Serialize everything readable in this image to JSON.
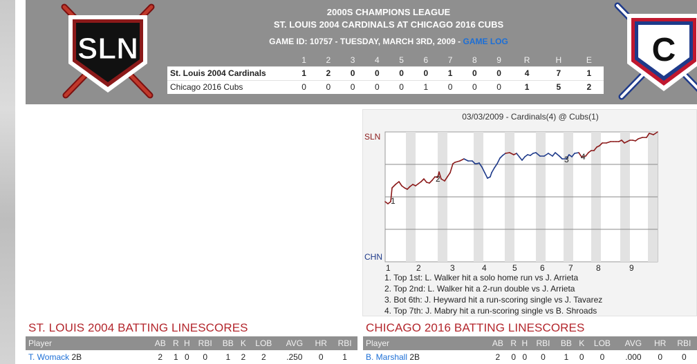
{
  "header": {
    "league": "2000S CHAMPIONS LEAGUE",
    "matchup": "ST. LOUIS 2004 CARDINALS AT CHICAGO 2016 CUBS",
    "game_info": "GAME ID: 10757 - TUESDAY, MARCH 3RD, 2009 - ",
    "game_log_link": "GAME LOG",
    "away_logo_text": "SLN",
    "home_logo_text": "C"
  },
  "colors": {
    "cardinals_red": "#8b1a1a",
    "cubs_blue": "#1e3a8a",
    "link": "#1d6fd6",
    "section_title": "#b3262c",
    "header_bg": "#8f8f8f"
  },
  "linescore": {
    "headers": [
      "",
      "1",
      "2",
      "3",
      "4",
      "5",
      "6",
      "7",
      "8",
      "9",
      "R",
      "H",
      "E"
    ],
    "rows": [
      {
        "team": "St. Louis 2004 Cardinals",
        "innings": [
          "1",
          "2",
          "0",
          "0",
          "0",
          "0",
          "1",
          "0",
          "0"
        ],
        "r": "4",
        "h": "7",
        "e": "1"
      },
      {
        "team": "Chicago 2016 Cubs",
        "innings": [
          "0",
          "0",
          "0",
          "0",
          "0",
          "1",
          "0",
          "0",
          "0"
        ],
        "r": "1",
        "h": "5",
        "e": "2"
      }
    ]
  },
  "win_prob": {
    "title": "03/03/2009 - Cardinals(4) @ Cubs(1)",
    "top_label": "SLN",
    "bottom_label": "CHN",
    "innings": [
      "1",
      "2",
      "3",
      "4",
      "5",
      "6",
      "7",
      "8",
      "9"
    ],
    "markers": [
      "1",
      "2",
      "3",
      "4"
    ],
    "notes": [
      "1. Top 1st: L. Walker hit a solo home run vs J. Arrieta",
      "2. Top 2nd: L. Walker hit a 2-run double vs J. Arrieta",
      "3. Bot 6th: J. Heyward hit a run-scoring single vs J. Tavarez",
      "4. Top 7th: J. Mabry hit a run-scoring single vs B. Shroads"
    ]
  },
  "stl_batting": {
    "title": "ST. LOUIS 2004 BATTING LINESCORES",
    "headers": [
      "Player",
      "AB",
      "R",
      "H",
      "RBI",
      "BB",
      "K",
      "LOB",
      "AVG",
      "HR",
      "RBI"
    ],
    "rows": [
      {
        "player": "T. Womack",
        "pos": "2B",
        "stats": [
          "2",
          "1",
          "0",
          "0",
          "1",
          "2",
          "2",
          ".250",
          "0",
          "1"
        ]
      }
    ]
  },
  "chc_batting": {
    "title": "CHICAGO 2016 BATTING LINESCORES",
    "headers": [
      "Player",
      "AB",
      "R",
      "H",
      "RBI",
      "BB",
      "K",
      "LOB",
      "AVG",
      "HR",
      "RBI"
    ],
    "rows": [
      {
        "player": "B. Marshall",
        "pos": "2B",
        "stats": [
          "2",
          "0",
          "0",
          "0",
          "1",
          "0",
          "0",
          ".000",
          "0",
          "0"
        ]
      }
    ]
  }
}
